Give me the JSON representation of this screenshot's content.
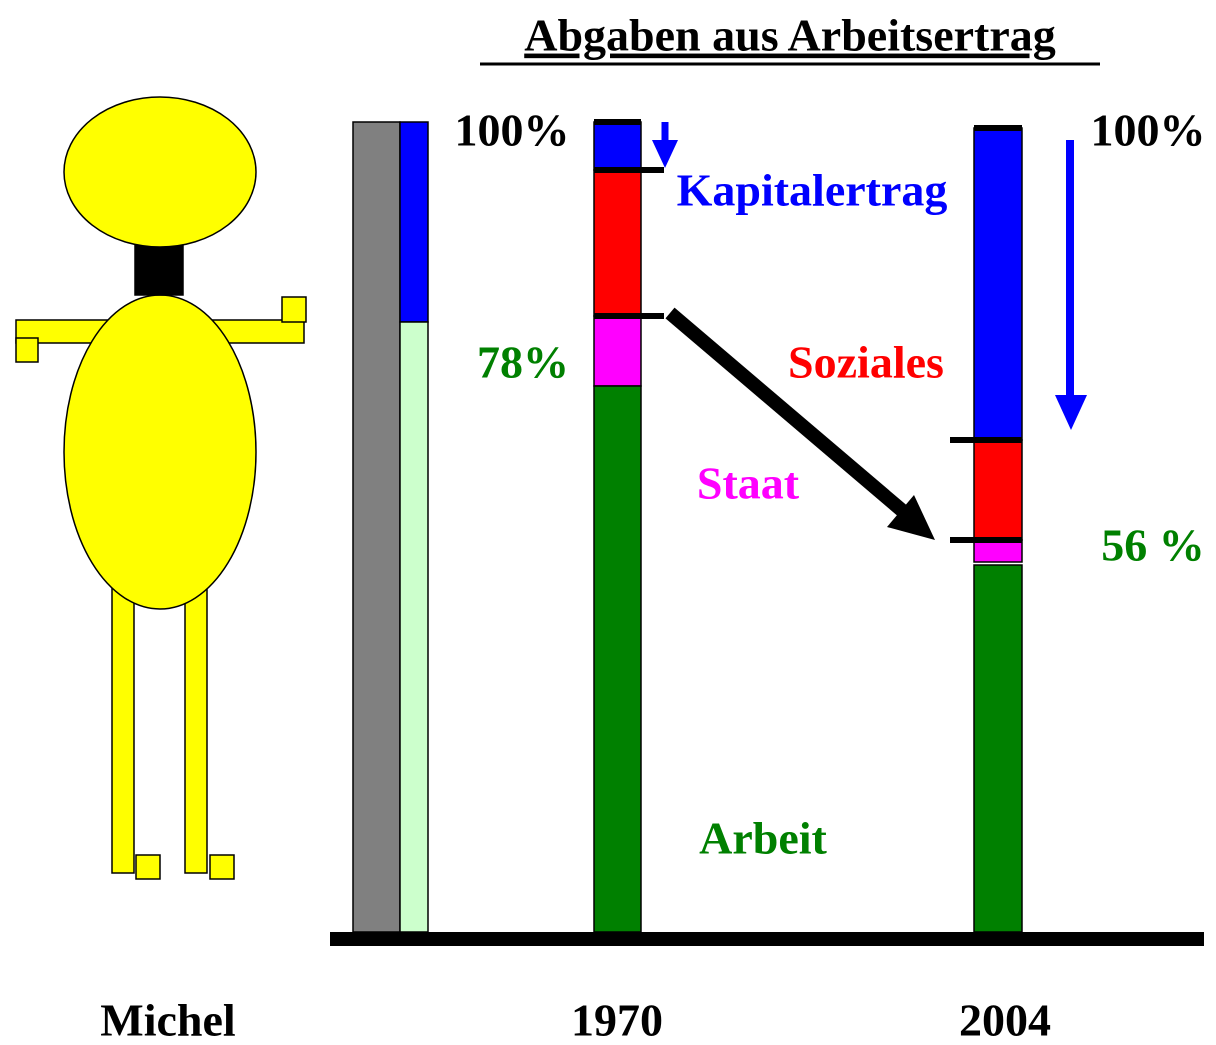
{
  "header": {
    "title": "Abgaben aus Arbeitsertrag"
  },
  "labels": {
    "top_1970": "100%",
    "top_2004": "100%",
    "share_1970": "78%",
    "share_2004": "56 %",
    "kapitalertrag": "Kapitalertrag",
    "soziales": "Soziales",
    "staat": "Staat",
    "arbeit": "Arbeit"
  },
  "columns": [
    "Michel",
    "1970",
    "2004"
  ]
}
